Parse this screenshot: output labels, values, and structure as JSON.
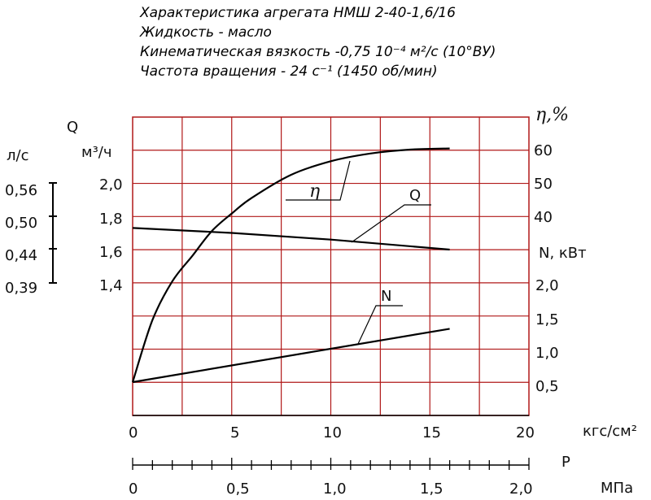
{
  "header": {
    "line1": "Характеристика агрегата НМШ 2-40-1,6/16",
    "line2": "Жидкость - масло",
    "line3": "Кинематическая вязкость -0,75 10⁻⁴ м²/с (10°ВУ)",
    "line4": "Частота вращения - 24 с⁻¹ (1450 об/мин)"
  },
  "chart_data": {
    "type": "line",
    "grid": true,
    "x": {
      "label": "P",
      "unit": "кгс/см²",
      "range": [
        0,
        20
      ],
      "ticks": [
        "0",
        "5",
        "10",
        "15",
        "20"
      ],
      "secondary_unit": "МПа",
      "secondary_ticks": [
        "0",
        "0,5",
        "1,0",
        "1,5",
        "2,0"
      ]
    },
    "axes": {
      "Q": {
        "label": "Q",
        "unit_ls": "л/с",
        "unit_m3h": "м³/ч",
        "ticks_m3h": [
          "2,0",
          "1,8",
          "1,6",
          "1,4"
        ],
        "ticks_ls": [
          "0,56",
          "0,50",
          "0,44",
          "0,39"
        ]
      },
      "eta": {
        "label": "η,%",
        "ticks": [
          "60",
          "50",
          "40"
        ],
        "range": [
          0,
          60
        ]
      },
      "N": {
        "label": "N, кВт",
        "ticks": [
          "2,0",
          "1,5",
          "1,0",
          "0,5"
        ],
        "range": [
          0,
          2.0
        ]
      }
    },
    "series": [
      {
        "name": "Q",
        "unit": "м³/ч",
        "x": [
          0,
          5,
          10,
          16
        ],
        "values": [
          1.73,
          1.7,
          1.66,
          1.6
        ]
      },
      {
        "name": "η",
        "unit": "%",
        "x": [
          0,
          1,
          2,
          3,
          4,
          5,
          6,
          8,
          10,
          12,
          14,
          16
        ],
        "values": [
          0,
          16,
          26,
          32.5,
          39,
          43.5,
          47.5,
          53.5,
          57,
          59,
          60,
          60.3
        ]
      },
      {
        "name": "N",
        "unit": "кВт",
        "x": [
          0,
          16
        ],
        "values": [
          0.5,
          1.3
        ]
      }
    ],
    "curve_labels": [
      "η",
      "Q",
      "N"
    ]
  }
}
